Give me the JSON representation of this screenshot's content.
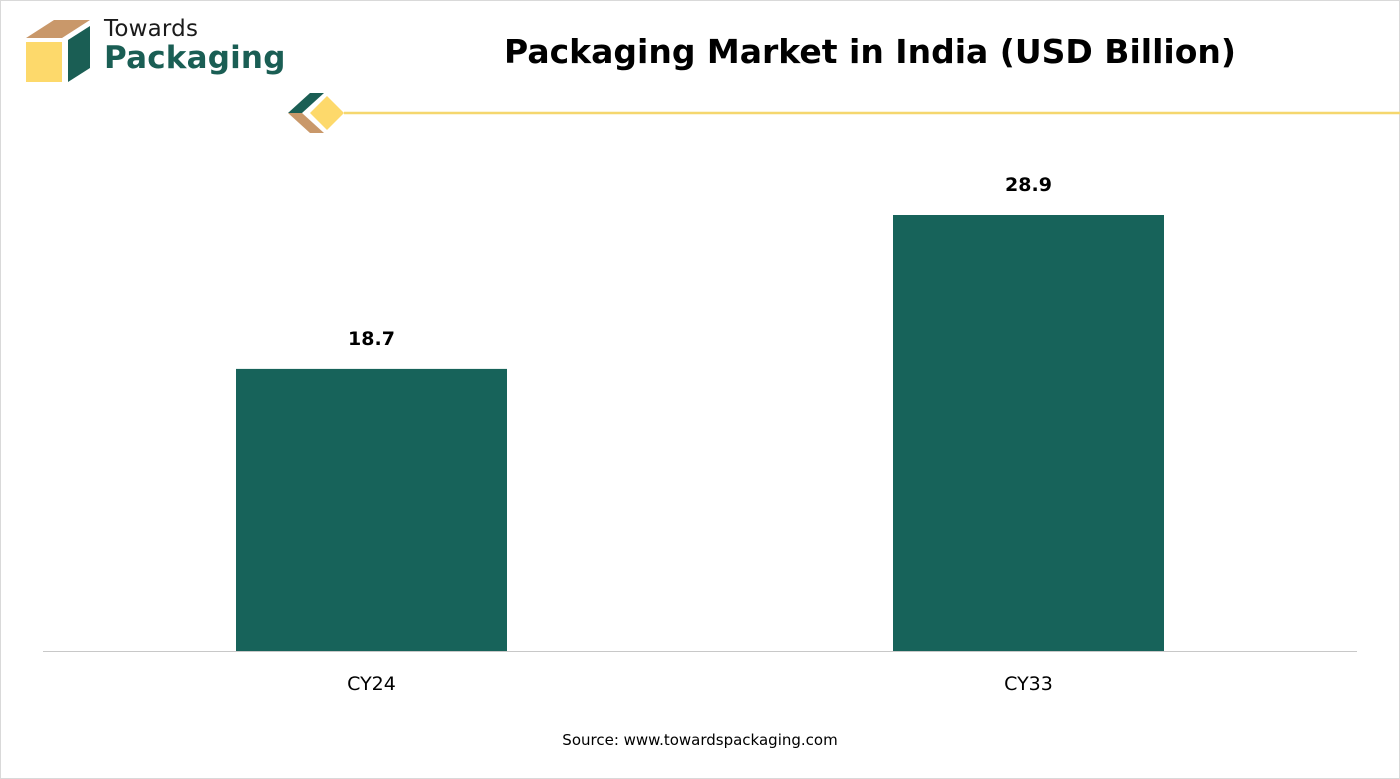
{
  "brand": {
    "line1": "Towards",
    "line2": "Packaging"
  },
  "source_text": "Source: www.towardspackaging.com",
  "colors": {
    "bar": "#17635a",
    "accent_line": "#f5d76e",
    "axis": "#c8c8c8",
    "logo_tan": "#c9986a",
    "logo_yellow": "#fdd96b",
    "logo_green": "#1a5e54"
  },
  "chart_data": {
    "type": "bar",
    "title": "Packaging Market in India (USD Billion)",
    "categories": [
      "CY24",
      "CY33"
    ],
    "values": [
      18.7,
      28.9
    ],
    "data_labels": [
      "18.7",
      "28.9"
    ],
    "xlabel": "",
    "ylabel": "",
    "ylim": [
      0,
      32
    ],
    "grid": false,
    "legend": "none"
  }
}
